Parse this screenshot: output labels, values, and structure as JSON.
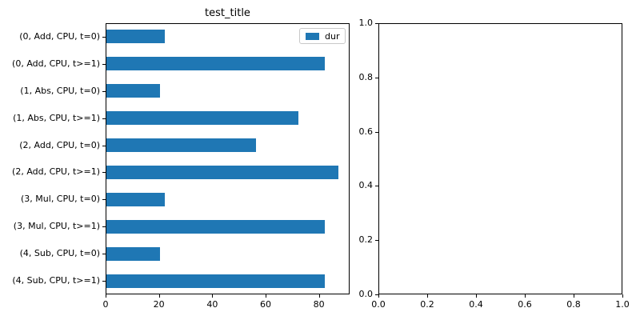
{
  "figure": {
    "background": "#ffffff",
    "text_color": "#000000",
    "spine_color": "#000000",
    "legend_border_color": "#c8c8c8"
  },
  "chart_data": [
    {
      "type": "bar",
      "orientation": "horizontal",
      "title": "test_title",
      "categories": [
        "(0, Add, CPU, t=0)",
        "(0, Add, CPU, t>=1)",
        "(1, Abs, CPU, t=0)",
        "(1, Abs, CPU, t>=1)",
        "(2, Add, CPU, t=0)",
        "(2, Add, CPU, t>=1)",
        "(3, Mul, CPU, t=0)",
        "(3, Mul, CPU, t>=1)",
        "(4, Sub, CPU, t=0)",
        "(4, Sub, CPU, t>=1)"
      ],
      "series": [
        {
          "name": "dur",
          "values": [
            22,
            82,
            20,
            72,
            56,
            87,
            22,
            82,
            20,
            82
          ]
        }
      ],
      "bar_color": "#1f77b4",
      "xlim": [
        0,
        91.5
      ],
      "xticks": [
        "0",
        "20",
        "40",
        "60",
        "80"
      ],
      "xtick_values": [
        0,
        20,
        40,
        60,
        80
      ],
      "legend": {
        "position": "upper-right",
        "entries": [
          {
            "label": "dur",
            "color": "#1f77b4"
          }
        ]
      },
      "grid": false,
      "xlabel": "",
      "ylabel": ""
    },
    {
      "type": "empty-axes",
      "title": "",
      "xlim": [
        0,
        1
      ],
      "ylim": [
        0,
        1
      ],
      "xticks": [
        "0.0",
        "0.2",
        "0.4",
        "0.6",
        "0.8",
        "1.0"
      ],
      "xtick_values": [
        0,
        0.2,
        0.4,
        0.6,
        0.8,
        1.0
      ],
      "yticks": [
        "0.0",
        "0.2",
        "0.4",
        "0.6",
        "0.8",
        "1.0"
      ],
      "ytick_values": [
        0,
        0.2,
        0.4,
        0.6,
        0.8,
        1.0
      ],
      "grid": false
    }
  ]
}
